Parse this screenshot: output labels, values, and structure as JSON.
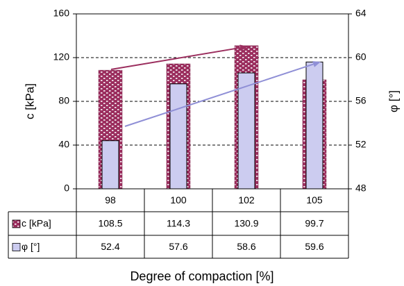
{
  "chart_data": {
    "type": "bar",
    "categories": [
      "98",
      "100",
      "102",
      "105"
    ],
    "xlabel": "Degree of compaction [%]",
    "series": [
      {
        "name": "c [kPa]",
        "axis": "left",
        "values": [
          108.5,
          114.3,
          130.9,
          99.7
        ],
        "color": "#9b2e5e",
        "pattern": "checker"
      },
      {
        "name": "φ [°]",
        "axis": "right",
        "values": [
          52.4,
          57.6,
          58.6,
          59.6
        ],
        "color": "#ccccf0"
      }
    ],
    "y_left": {
      "label": "c [kPa]",
      "ylim": [
        0,
        160
      ],
      "ticks": [
        0,
        40,
        80,
        120,
        160
      ]
    },
    "y_right": {
      "label": "φ [°]",
      "ylim": [
        48,
        64
      ],
      "ticks": [
        48,
        52,
        56,
        60,
        64
      ]
    },
    "grid": "dashed horizontal",
    "data_table": true,
    "trend_arrows": [
      {
        "series": "c [kPa]",
        "color": "#9b2e5e"
      },
      {
        "series": "φ [°]",
        "color": "#8f8fd6"
      }
    ]
  }
}
